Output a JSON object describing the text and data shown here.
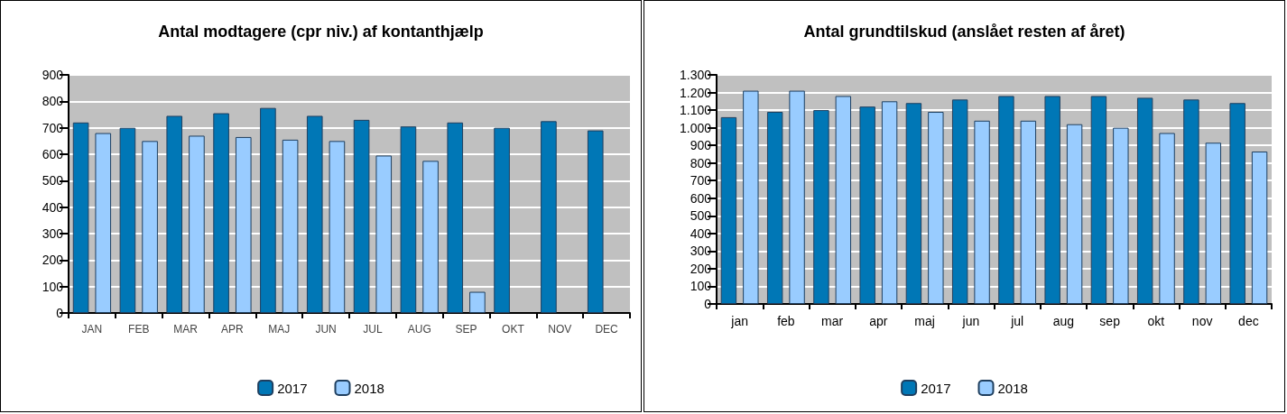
{
  "chart_data": [
    {
      "type": "bar",
      "title": "Antal modtagere (cpr niv.) af kontanthjælp",
      "categories": [
        "JAN",
        "FEB",
        "MAR",
        "APR",
        "MAJ",
        "JUN",
        "JUL",
        "AUG",
        "SEP",
        "OKT",
        "NOV",
        "DEC"
      ],
      "series": [
        {
          "name": "2017",
          "color": "#0077b6",
          "values": [
            720,
            700,
            745,
            755,
            775,
            745,
            730,
            705,
            720,
            700,
            725,
            690
          ]
        },
        {
          "name": "2018",
          "color": "#99ccff",
          "values": [
            680,
            650,
            670,
            665,
            655,
            650,
            595,
            575,
            80,
            null,
            null,
            null
          ]
        }
      ],
      "ylim": [
        0,
        900
      ],
      "yticks": [
        0,
        100,
        200,
        300,
        400,
        500,
        600,
        700,
        800,
        900
      ],
      "grid": "y",
      "legend": "bottom"
    },
    {
      "type": "bar",
      "title": "Antal grundtilskud (anslået resten af året)",
      "categories": [
        "jan",
        "feb",
        "mar",
        "apr",
        "maj",
        "jun",
        "jul",
        "aug",
        "sep",
        "okt",
        "nov",
        "dec"
      ],
      "series": [
        {
          "name": "2017",
          "color": "#0077b6",
          "values": [
            1060,
            1090,
            1100,
            1120,
            1140,
            1160,
            1180,
            1180,
            1180,
            1170,
            1160,
            1140
          ]
        },
        {
          "name": "2018",
          "color": "#99ccff",
          "values": [
            1210,
            1210,
            1180,
            1150,
            1090,
            1040,
            1040,
            1020,
            1000,
            970,
            915,
            865
          ]
        }
      ],
      "ylim": [
        0,
        1300
      ],
      "yticks": [
        0,
        100,
        200,
        300,
        400,
        500,
        600,
        700,
        800,
        900,
        {
          "value": 1000,
          "label": "1.000"
        },
        {
          "value": 1100,
          "label": "1.100"
        },
        {
          "value": 1200,
          "label": "1.200"
        },
        {
          "value": 1300,
          "label": "1.300"
        }
      ],
      "grid": "y",
      "legend": "bottom"
    }
  ]
}
